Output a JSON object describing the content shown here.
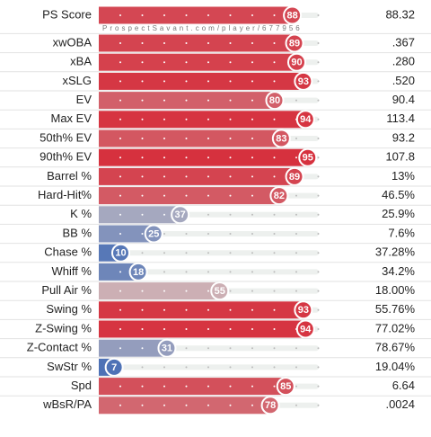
{
  "watermark": "ProspectSavant.com/player/677956",
  "colors": [
    "#3a66b4",
    "#cbbfc3",
    "#d7212f"
  ],
  "rows": [
    {
      "label": "PS Score",
      "percentile": 88,
      "stat": "88.32"
    },
    {
      "label": "xwOBA",
      "percentile": 89,
      "stat": ".367"
    },
    {
      "label": "xBA",
      "percentile": 90,
      "stat": ".280"
    },
    {
      "label": "xSLG",
      "percentile": 93,
      "stat": ".520"
    },
    {
      "label": "EV",
      "percentile": 80,
      "stat": "90.4"
    },
    {
      "label": "Max EV",
      "percentile": 94,
      "stat": "113.4"
    },
    {
      "label": "50th% EV",
      "percentile": 83,
      "stat": "93.2"
    },
    {
      "label": "90th% EV",
      "percentile": 95,
      "stat": "107.8"
    },
    {
      "label": "Barrel %",
      "percentile": 89,
      "stat": "13%"
    },
    {
      "label": "Hard-Hit%",
      "percentile": 82,
      "stat": "46.5%"
    },
    {
      "label": "K %",
      "percentile": 37,
      "stat": "25.9%"
    },
    {
      "label": "BB %",
      "percentile": 25,
      "stat": "7.6%"
    },
    {
      "label": "Chase %",
      "percentile": 10,
      "stat": "37.28%"
    },
    {
      "label": "Whiff %",
      "percentile": 18,
      "stat": "34.2%"
    },
    {
      "label": "Pull Air %",
      "percentile": 55,
      "stat": "18.00%"
    },
    {
      "label": "Swing %",
      "percentile": 93,
      "stat": "55.76%"
    },
    {
      "label": "Z-Swing %",
      "percentile": 94,
      "stat": "77.02%"
    },
    {
      "label": "Z-Contact %",
      "percentile": 31,
      "stat": "78.67%"
    },
    {
      "label": "SwStr %",
      "percentile": 7,
      "stat": "19.04%"
    },
    {
      "label": "Spd",
      "percentile": 85,
      "stat": "6.64"
    },
    {
      "label": "wBsR/PA",
      "percentile": 78,
      "stat": ".0024"
    }
  ]
}
